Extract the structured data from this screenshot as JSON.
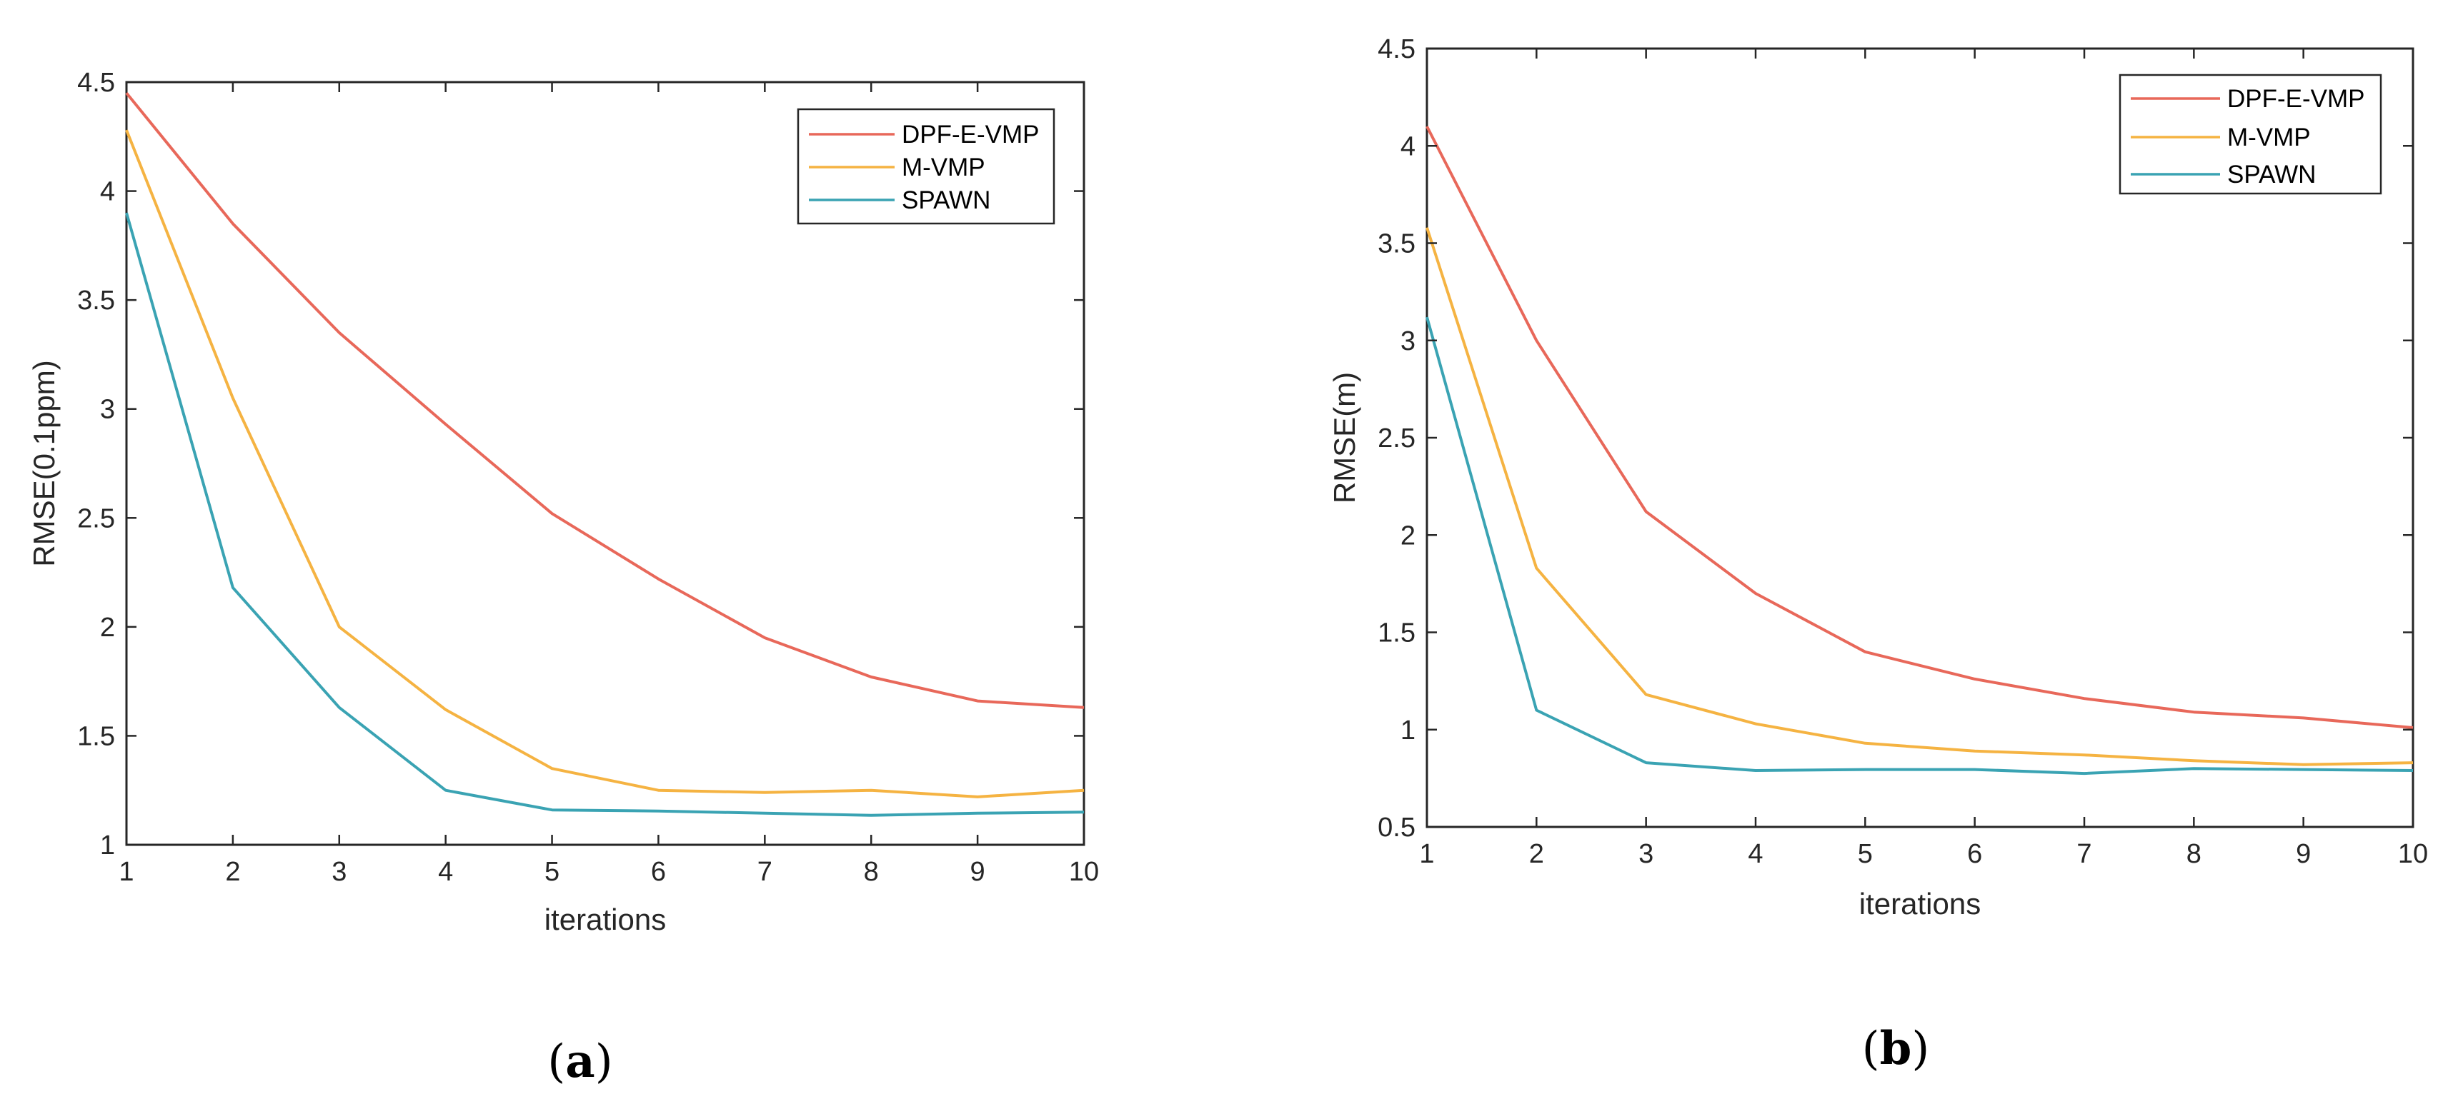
{
  "chart_data": [
    {
      "type": "line",
      "panel_label": "a",
      "xlabel": "iterations",
      "ylabel": "RMSE(0.1ppm)",
      "xlim": [
        1,
        10
      ],
      "ylim": [
        1,
        4.5
      ],
      "xticks": [
        "1",
        "2",
        "3",
        "4",
        "5",
        "6",
        "7",
        "8",
        "9",
        "10"
      ],
      "yticks": [
        "1",
        "1.5",
        "2",
        "2.5",
        "3",
        "3.5",
        "4",
        "4.5"
      ],
      "x": [
        1,
        2,
        3,
        4,
        5,
        6,
        7,
        8,
        9,
        10
      ],
      "legend_position": "top-right",
      "series": [
        {
          "name": "DPF-E-VMP",
          "color": "#e8685a",
          "values": [
            4.45,
            3.85,
            3.35,
            2.93,
            2.52,
            2.22,
            1.95,
            1.77,
            1.66,
            1.63
          ]
        },
        {
          "name": "M-VMP",
          "color": "#f5b342",
          "values": [
            4.28,
            3.05,
            2.0,
            1.62,
            1.35,
            1.25,
            1.24,
            1.25,
            1.22,
            1.25
          ]
        },
        {
          "name": "SPAWN",
          "color": "#3aa3b3",
          "values": [
            3.9,
            2.18,
            1.63,
            1.25,
            1.16,
            1.155,
            1.145,
            1.135,
            1.145,
            1.15
          ]
        }
      ]
    },
    {
      "type": "line",
      "panel_label": "b",
      "xlabel": "iterations",
      "ylabel": "RMSE(m)",
      "xlim": [
        1,
        10
      ],
      "ylim": [
        0.5,
        4.5
      ],
      "xticks": [
        "1",
        "2",
        "3",
        "4",
        "5",
        "6",
        "7",
        "8",
        "9",
        "10"
      ],
      "yticks": [
        "0.5",
        "1",
        "1.5",
        "2",
        "2.5",
        "3",
        "3.5",
        "4",
        "4.5"
      ],
      "x": [
        1,
        2,
        3,
        4,
        5,
        6,
        7,
        8,
        9,
        10
      ],
      "legend_position": "top-right",
      "series": [
        {
          "name": "DPF-E-VMP",
          "color": "#e8685a",
          "values": [
            4.1,
            3.0,
            2.12,
            1.7,
            1.4,
            1.26,
            1.16,
            1.09,
            1.06,
            1.01
          ]
        },
        {
          "name": "M-VMP",
          "color": "#f5b342",
          "values": [
            3.58,
            1.83,
            1.18,
            1.03,
            0.93,
            0.89,
            0.87,
            0.84,
            0.82,
            0.83
          ]
        },
        {
          "name": "SPAWN",
          "color": "#3aa3b3",
          "values": [
            3.12,
            1.1,
            0.83,
            0.79,
            0.795,
            0.795,
            0.775,
            0.8,
            0.795,
            0.79
          ]
        }
      ]
    }
  ],
  "captions": [
    {
      "open": "(",
      "letter": "a",
      "close": ")"
    },
    {
      "open": "(",
      "letter": "b",
      "close": ")"
    }
  ]
}
